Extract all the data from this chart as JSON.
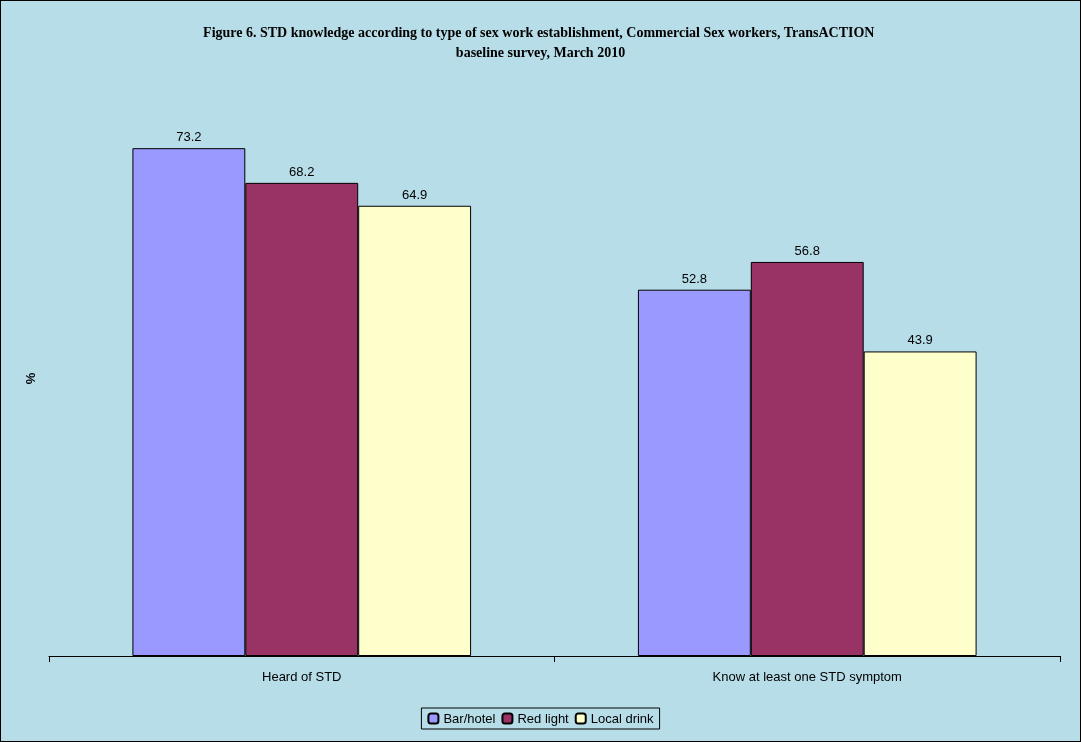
{
  "chart_data": {
    "type": "bar",
    "title": "Figure 6. STD knowledge according to type of sex work establishment, Commercial Sex workers, TransACTION baseline survey, March 2010",
    "ylabel": "%",
    "categories": [
      "Heard of STD",
      "Know at least one STD symptom"
    ],
    "series": [
      {
        "name": "Bar/hotel",
        "color": "#9999ff",
        "values": [
          73.2,
          52.8
        ]
      },
      {
        "name": "Red light",
        "color": "#993366",
        "values": [
          68.2,
          56.8
        ]
      },
      {
        "name": "Local drink",
        "color": "#ffffcc",
        "values": [
          64.9,
          43.9
        ]
      }
    ],
    "data_labels": true,
    "legend": "bottom",
    "grid": false
  }
}
